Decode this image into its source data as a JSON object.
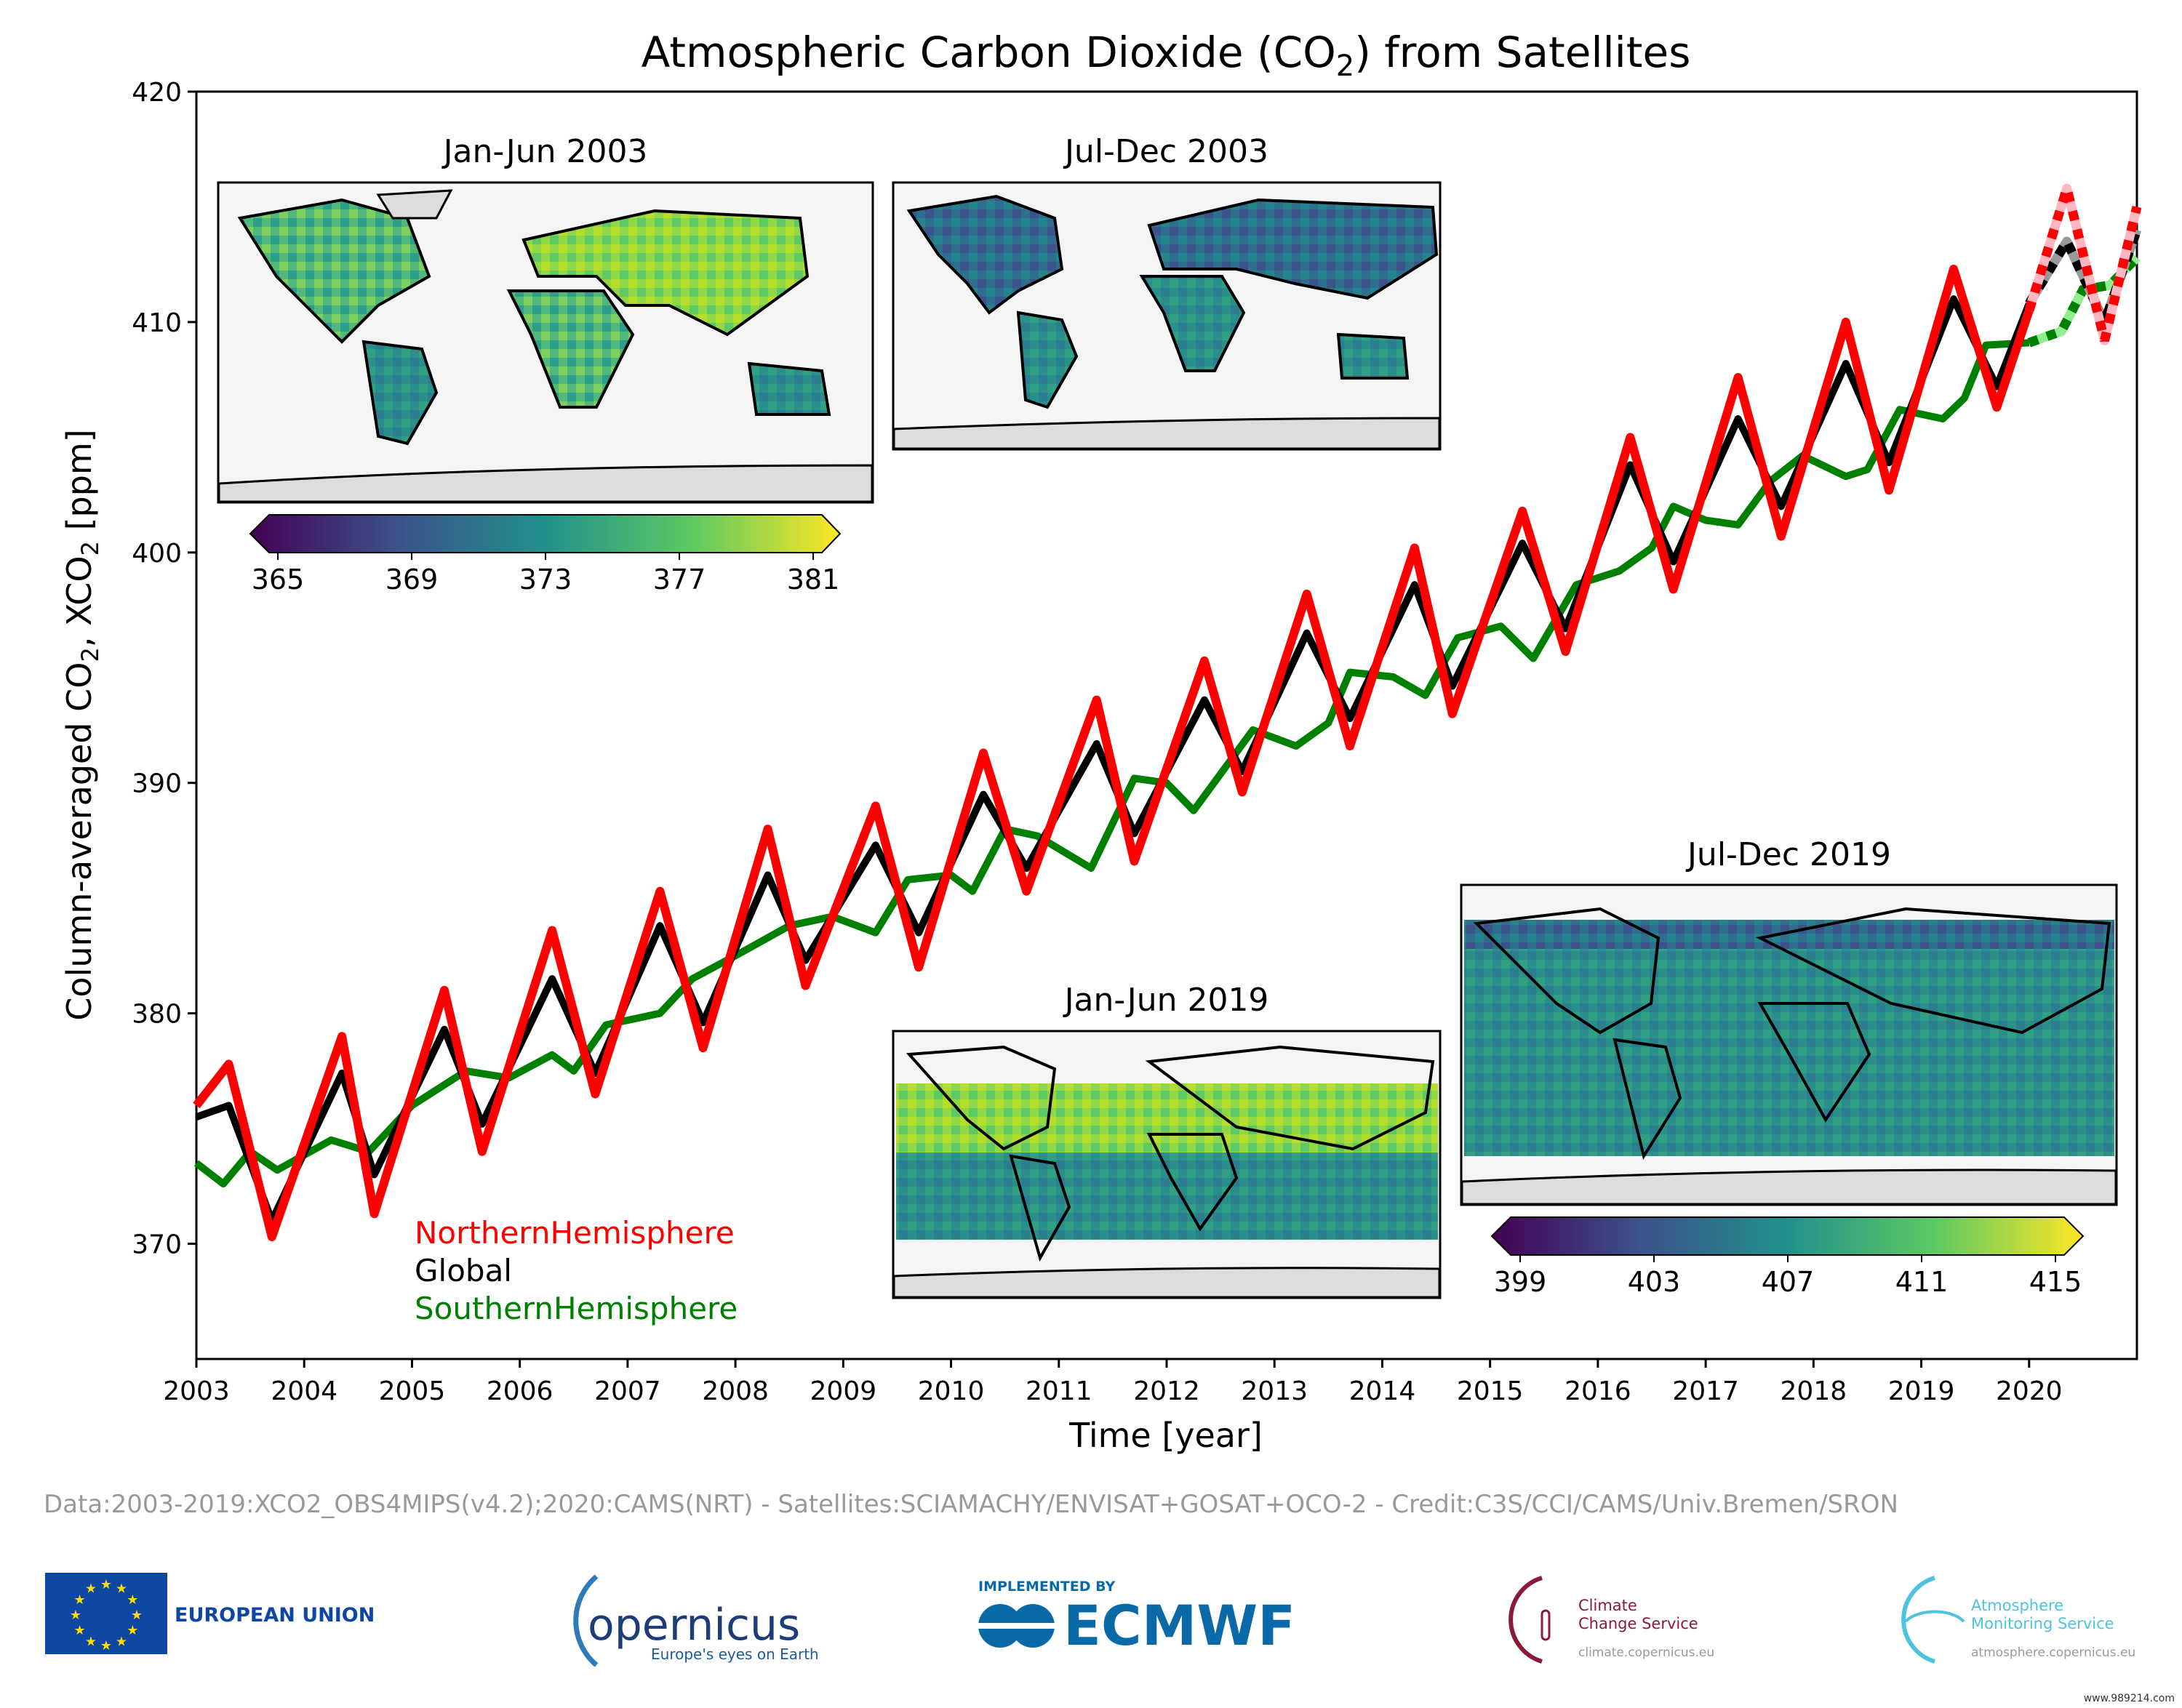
{
  "chart_data": {
    "type": "line",
    "title": "Atmospheric Carbon Dioxide (CO2) from Satellites",
    "title_parts": {
      "pre": "Atmospheric Carbon Dioxide (CO",
      "sub": "2",
      "post": ") from Satellites"
    },
    "xlabel": "Time [year]",
    "ylabel_parts": {
      "a": "Column-averaged CO",
      "sub1": "2",
      "b": ", XCO",
      "sub2": "2",
      "c": " [ppm]"
    },
    "xlim": [
      2003,
      2021
    ],
    "ylim": [
      365,
      420
    ],
    "xticks": [
      "2003",
      "2004",
      "2005",
      "2006",
      "2007",
      "2008",
      "2009",
      "2010",
      "2011",
      "2012",
      "2013",
      "2014",
      "2015",
      "2016",
      "2017",
      "2018",
      "2019",
      "2020"
    ],
    "yticks": [
      "370",
      "380",
      "390",
      "400",
      "410",
      "420"
    ],
    "grid": false,
    "legend_placement": "lower-left",
    "dotted_from_year": 2020,
    "series": [
      {
        "name": "NorthernHemisphere",
        "color": "#ff0000",
        "dotted_underlay": "#ffb6c1",
        "x": [
          2003,
          2003.3,
          2003.7,
          2004.35,
          2004.65,
          2005.3,
          2005.65,
          2006.3,
          2006.7,
          2007.3,
          2007.7,
          2008.3,
          2008.65,
          2009.3,
          2009.7,
          2010.3,
          2010.7,
          2011.35,
          2011.7,
          2012.35,
          2012.7,
          2013.3,
          2013.7,
          2014.3,
          2014.65,
          2015.3,
          2015.7,
          2016.3,
          2016.7,
          2017.3,
          2017.7,
          2018.3,
          2018.7,
          2019.3,
          2019.7,
          2020,
          2020.35,
          2020.7,
          2021
        ],
        "y": [
          376,
          377.8,
          370.3,
          379,
          371.3,
          381,
          374,
          383.6,
          376.5,
          385.3,
          378.5,
          388,
          381.2,
          389,
          382,
          391.3,
          385.3,
          393.6,
          386.6,
          395.3,
          389.6,
          398.2,
          391.6,
          400.2,
          393,
          401.8,
          395.7,
          405,
          398.4,
          407.6,
          400.7,
          410,
          402.7,
          412.3,
          406.3,
          410.5,
          415.8,
          409.2,
          415
        ]
      },
      {
        "name": "Global",
        "color": "#000000",
        "dotted_underlay": "#999999",
        "x": [
          2003,
          2003.3,
          2003.7,
          2004.35,
          2004.65,
          2005.3,
          2005.65,
          2006.3,
          2006.7,
          2007.3,
          2007.7,
          2008.3,
          2008.65,
          2009.3,
          2009.7,
          2010.3,
          2010.7,
          2011.35,
          2011.7,
          2012.35,
          2012.7,
          2013.3,
          2013.7,
          2014.3,
          2014.65,
          2015.3,
          2015.7,
          2016.3,
          2016.7,
          2017.3,
          2017.7,
          2018.3,
          2018.7,
          2019.3,
          2019.7,
          2020,
          2020.35,
          2020.7,
          2021
        ],
        "y": [
          375.5,
          376,
          371,
          377.4,
          373,
          379.3,
          375.2,
          381.5,
          377.4,
          383.8,
          379.6,
          386,
          382.3,
          387.3,
          383.5,
          389.5,
          386.3,
          391.7,
          387.8,
          393.6,
          390.5,
          396.5,
          392.8,
          398.6,
          394.2,
          400.4,
          396.7,
          403.8,
          399.6,
          405.8,
          402,
          408.2,
          403.9,
          411,
          407.2,
          410.8,
          413.5,
          410,
          414
        ]
      },
      {
        "name": "SouthernHemisphere",
        "color": "#008000",
        "dotted_underlay": "#90ee90",
        "x": [
          2003,
          2003.25,
          2003.5,
          2003.75,
          2004.25,
          2004.6,
          2005,
          2005.5,
          2005.9,
          2006.3,
          2006.5,
          2006.8,
          2007.3,
          2007.6,
          2008,
          2008.5,
          2008.9,
          2009.3,
          2009.6,
          2010,
          2010.2,
          2010.5,
          2010.8,
          2011.3,
          2011.7,
          2012,
          2012.25,
          2012.8,
          2013.2,
          2013.5,
          2013.7,
          2014.1,
          2014.4,
          2014.7,
          2015.1,
          2015.4,
          2015.8,
          2016.2,
          2016.5,
          2016.7,
          2017,
          2017.3,
          2017.6,
          2017.9,
          2018.3,
          2018.5,
          2018.8,
          2019.2,
          2019.4,
          2019.6,
          2020,
          2020.3,
          2020.5,
          2020.75,
          2021
        ],
        "y": [
          373.5,
          372.6,
          374,
          373.2,
          374.5,
          374,
          376,
          377.5,
          377.2,
          378.2,
          377.5,
          379.5,
          380,
          381.5,
          382.5,
          383.8,
          384.2,
          383.5,
          385.8,
          386,
          385.3,
          388,
          387.7,
          386.3,
          390.2,
          390,
          388.8,
          392.3,
          391.6,
          392.6,
          394.8,
          394.6,
          393.8,
          396.3,
          396.8,
          395.4,
          398.6,
          399.2,
          400.2,
          402,
          401.4,
          401.2,
          403.1,
          404.2,
          403.3,
          403.6,
          406.2,
          405.8,
          406.7,
          409,
          409.1,
          409.6,
          411.4,
          411.6,
          412.8
        ]
      }
    ],
    "insets": [
      {
        "title": "Jan-Jun 2003",
        "colorbar_ticks": [
          "365",
          "369",
          "373",
          "377",
          "381"
        ]
      },
      {
        "title": "Jul-Dec 2003"
      },
      {
        "title": "Jan-Jun 2019"
      },
      {
        "title": "Jul-Dec 2019",
        "colorbar_ticks": [
          "399",
          "403",
          "407",
          "411",
          "415"
        ]
      }
    ]
  },
  "footer": {
    "credits": "Data:2003-2019:XCO2_OBS4MIPS(v4.2);2020:CAMS(NRT) - Satellites:SCIAMACHY/ENVISAT+GOSAT+OCO-2 - Credit:C3S/CCI/CAMS/Univ.Bremen/SRON",
    "logos": {
      "eu": "EUROPEAN UNION",
      "copernicus": "opernicus",
      "copernicus_tagline": "Europe's eyes on Earth",
      "ecmwf_small": "IMPLEMENTED BY",
      "ecmwf": "ECMWF",
      "c3s_1": "Climate",
      "c3s_2": "Change Service",
      "c3s_url": "climate.copernicus.eu",
      "cams_1": "Atmosphere",
      "cams_2": "Monitoring Service",
      "cams_url": "atmosphere.copernicus.eu"
    },
    "watermark": "www.989214.com"
  },
  "colors": {
    "viridis": [
      "#440154",
      "#3b528b",
      "#21918c",
      "#5ec962",
      "#fde725"
    ],
    "footer_text": "#999999",
    "eu_blue": "#0e47a1",
    "ecmwf_blue": "#0a6aa7",
    "c3s": "#8b1a3a",
    "cams": "#4ec3e0"
  }
}
